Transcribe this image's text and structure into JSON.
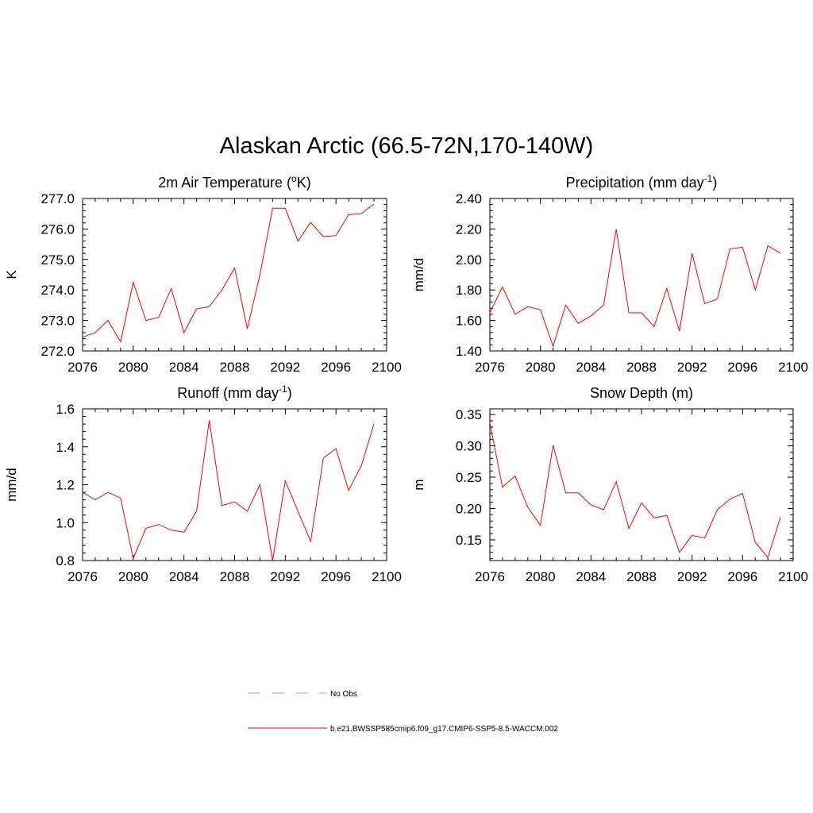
{
  "title": "Alaskan Arctic (66.5-72N,170-140W)",
  "colors": {
    "series": "#ff0000",
    "obs": "#9999ff",
    "axis": "#000000"
  },
  "legend": {
    "obs_label": "No Obs",
    "model_label": "b.e21.BWSSP585cmip6.f09_g17.CMIP6-SSP5-8.5-WACCM.002"
  },
  "chart_data": [
    {
      "type": "line",
      "title": "2m Air Temperature (",
      "title_sup": "o",
      "title_suffix": "K)",
      "title_super_base": "",
      "ylabel": "K",
      "xlim": [
        2076,
        2100
      ],
      "ylim": [
        272.0,
        277.0
      ],
      "xticks": [
        2076,
        2080,
        2084,
        2088,
        2092,
        2096,
        2100
      ],
      "yticks": [
        "272.0",
        "273.0",
        "274.0",
        "275.0",
        "276.0",
        "277.0"
      ],
      "x": [
        2076,
        2077,
        2078,
        2079,
        2080,
        2081,
        2082,
        2083,
        2084,
        2085,
        2086,
        2087,
        2088,
        2089,
        2090,
        2091,
        2092,
        2093,
        2094,
        2095,
        2096,
        2097,
        2098,
        2099
      ],
      "values": [
        272.45,
        272.6,
        273.0,
        272.3,
        274.25,
        273.0,
        273.1,
        274.05,
        272.6,
        273.38,
        273.45,
        274.0,
        274.72,
        272.73,
        274.5,
        276.68,
        276.68,
        275.6,
        276.22,
        275.75,
        275.78,
        276.47,
        276.5,
        276.82
      ]
    },
    {
      "type": "line",
      "title": "Precipitation (mm day",
      "title_sup": "-1",
      "title_suffix": ")",
      "ylabel": "mm/d",
      "xlim": [
        2076,
        2100
      ],
      "ylim": [
        1.4,
        2.4
      ],
      "xticks": [
        2076,
        2080,
        2084,
        2088,
        2092,
        2096,
        2100
      ],
      "yticks": [
        "1.40",
        "1.60",
        "1.80",
        "2.00",
        "2.20",
        "2.40"
      ],
      "x": [
        2076,
        2077,
        2078,
        2079,
        2080,
        2081,
        2082,
        2083,
        2084,
        2085,
        2086,
        2087,
        2088,
        2089,
        2090,
        2091,
        2092,
        2093,
        2094,
        2095,
        2096,
        2097,
        2098,
        2099
      ],
      "values": [
        1.65,
        1.82,
        1.64,
        1.69,
        1.67,
        1.43,
        1.7,
        1.58,
        1.63,
        1.7,
        2.2,
        1.65,
        1.65,
        1.56,
        1.81,
        1.53,
        2.04,
        1.71,
        1.74,
        2.07,
        2.08,
        1.8,
        2.09,
        2.04
      ]
    },
    {
      "type": "line",
      "title": "Runoff (mm day",
      "title_sup": "-1",
      "title_suffix": ")",
      "ylabel": "mm/d",
      "xlim": [
        2076,
        2100
      ],
      "ylim": [
        0.8,
        1.6
      ],
      "xticks": [
        2076,
        2080,
        2084,
        2088,
        2092,
        2096,
        2100
      ],
      "yticks": [
        "0.8",
        "1.0",
        "1.2",
        "1.4",
        "1.6"
      ],
      "x": [
        2076,
        2077,
        2078,
        2079,
        2080,
        2081,
        2082,
        2083,
        2084,
        2085,
        2086,
        2087,
        2088,
        2089,
        2090,
        2091,
        2092,
        2093,
        2094,
        2095,
        2096,
        2097,
        2098,
        2099
      ],
      "values": [
        1.16,
        1.12,
        1.16,
        1.13,
        0.81,
        0.97,
        0.99,
        0.96,
        0.95,
        1.06,
        1.54,
        1.09,
        1.11,
        1.06,
        1.2,
        0.8,
        1.22,
        1.06,
        0.9,
        1.34,
        1.39,
        1.17,
        1.3,
        1.52
      ]
    },
    {
      "type": "line",
      "title": "Snow Depth (m)",
      "title_sup": "",
      "title_suffix": "",
      "ylabel": "m",
      "xlim": [
        2076,
        2100
      ],
      "ylim": [
        0.117,
        0.359
      ],
      "xticks": [
        2076,
        2080,
        2084,
        2088,
        2092,
        2096,
        2100
      ],
      "yticks": [
        "0.15",
        "0.20",
        "0.25",
        "0.30",
        "0.35"
      ],
      "ytick_values": [
        0.15,
        0.2,
        0.25,
        0.3,
        0.35
      ],
      "x": [
        2076,
        2077,
        2078,
        2079,
        2080,
        2081,
        2082,
        2083,
        2084,
        2085,
        2086,
        2087,
        2088,
        2089,
        2090,
        2091,
        2092,
        2093,
        2094,
        2095,
        2096,
        2097,
        2098,
        2099
      ],
      "values": [
        0.337,
        0.234,
        0.252,
        0.202,
        0.173,
        0.301,
        0.225,
        0.225,
        0.206,
        0.198,
        0.243,
        0.168,
        0.209,
        0.185,
        0.189,
        0.13,
        0.157,
        0.153,
        0.198,
        0.215,
        0.224,
        0.146,
        0.122,
        0.186
      ]
    }
  ]
}
